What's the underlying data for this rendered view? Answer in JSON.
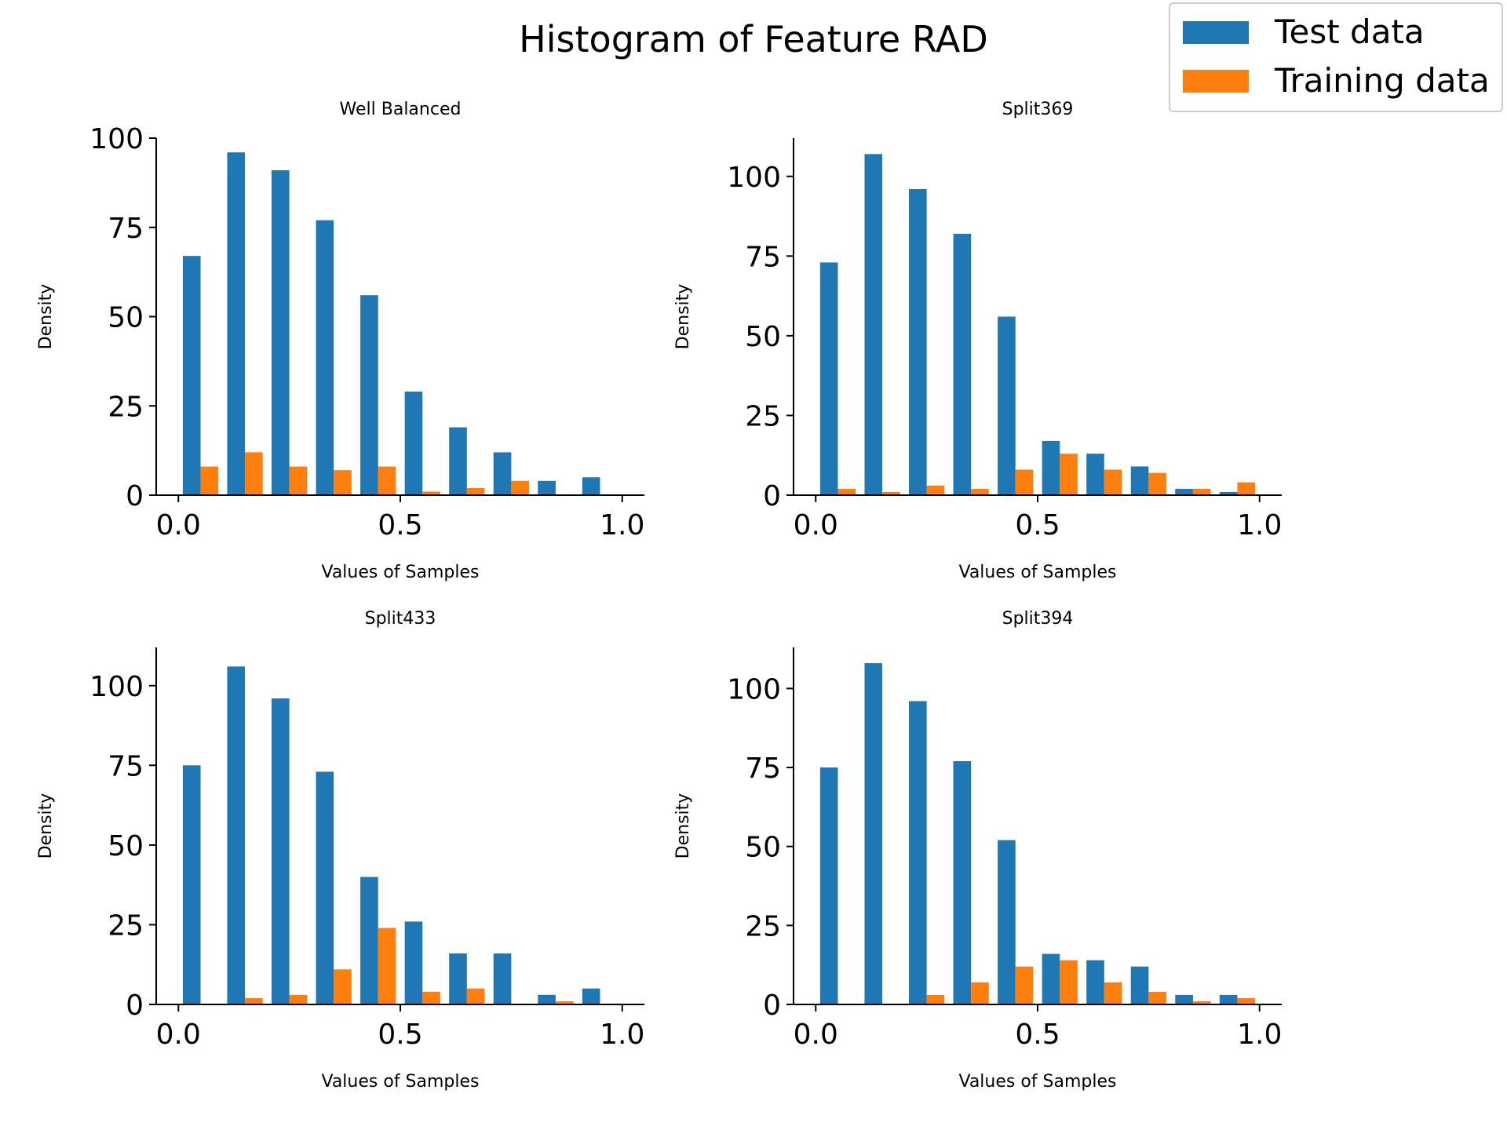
{
  "figure": {
    "title": "Histogram of Feature RAD"
  },
  "legend": {
    "placement": "top-right",
    "entries": [
      {
        "label": "Test data",
        "color": "#1f77b4"
      },
      {
        "label": "Training data",
        "color": "#ff7f0e"
      }
    ]
  },
  "chart_data": [
    {
      "type": "bar",
      "title": "Well Balanced",
      "xlabel": "Values of Samples",
      "ylabel": "Density",
      "xlim": [
        -0.05,
        1.05
      ],
      "ylim": [
        0,
        100
      ],
      "xticks": [
        "0.0",
        "0.5",
        "1.0"
      ],
      "yticks": [
        "0",
        "25",
        "50",
        "75",
        "100"
      ],
      "bin_centers": [
        0.05,
        0.15,
        0.25,
        0.35,
        0.45,
        0.55,
        0.65,
        0.75,
        0.85,
        0.95
      ],
      "series": [
        {
          "name": "Test data",
          "values": [
            67,
            96,
            91,
            77,
            56,
            29,
            19,
            12,
            4,
            5
          ]
        },
        {
          "name": "Training data",
          "values": [
            8,
            12,
            8,
            7,
            8,
            1,
            2,
            4,
            0,
            0
          ]
        }
      ]
    },
    {
      "type": "bar",
      "title": "Split369",
      "xlabel": "Values of Samples",
      "ylabel": "Density",
      "xlim": [
        -0.05,
        1.05
      ],
      "ylim": [
        0,
        112
      ],
      "xticks": [
        "0.0",
        "0.5",
        "1.0"
      ],
      "yticks": [
        "0",
        "25",
        "50",
        "75",
        "100"
      ],
      "bin_centers": [
        0.05,
        0.15,
        0.25,
        0.35,
        0.45,
        0.55,
        0.65,
        0.75,
        0.85,
        0.95
      ],
      "series": [
        {
          "name": "Test data",
          "values": [
            73,
            107,
            96,
            82,
            56,
            17,
            13,
            9,
            2,
            1
          ]
        },
        {
          "name": "Training data",
          "values": [
            2,
            1,
            3,
            2,
            8,
            13,
            8,
            7,
            2,
            4
          ]
        }
      ]
    },
    {
      "type": "bar",
      "title": "Split433",
      "xlabel": "Values of Samples",
      "ylabel": "Density",
      "xlim": [
        -0.05,
        1.05
      ],
      "ylim": [
        0,
        112
      ],
      "xticks": [
        "0.0",
        "0.5",
        "1.0"
      ],
      "yticks": [
        "0",
        "25",
        "50",
        "75",
        "100"
      ],
      "bin_centers": [
        0.05,
        0.15,
        0.25,
        0.35,
        0.45,
        0.55,
        0.65,
        0.75,
        0.85,
        0.95
      ],
      "series": [
        {
          "name": "Test data",
          "values": [
            75,
            106,
            96,
            73,
            40,
            26,
            16,
            16,
            3,
            5
          ]
        },
        {
          "name": "Training data",
          "values": [
            0,
            2,
            3,
            11,
            24,
            4,
            5,
            0,
            1,
            0
          ]
        }
      ]
    },
    {
      "type": "bar",
      "title": "Split394",
      "xlabel": "Values of Samples",
      "ylabel": "Density",
      "xlim": [
        -0.05,
        1.05
      ],
      "ylim": [
        0,
        113
      ],
      "xticks": [
        "0.0",
        "0.5",
        "1.0"
      ],
      "yticks": [
        "0",
        "25",
        "50",
        "75",
        "100"
      ],
      "bin_centers": [
        0.05,
        0.15,
        0.25,
        0.35,
        0.45,
        0.55,
        0.65,
        0.75,
        0.85,
        0.95
      ],
      "series": [
        {
          "name": "Test data",
          "values": [
            75,
            108,
            96,
            77,
            52,
            16,
            14,
            12,
            3,
            3
          ]
        },
        {
          "name": "Training data",
          "values": [
            0,
            0,
            3,
            7,
            12,
            14,
            7,
            4,
            1,
            2
          ]
        }
      ]
    }
  ]
}
